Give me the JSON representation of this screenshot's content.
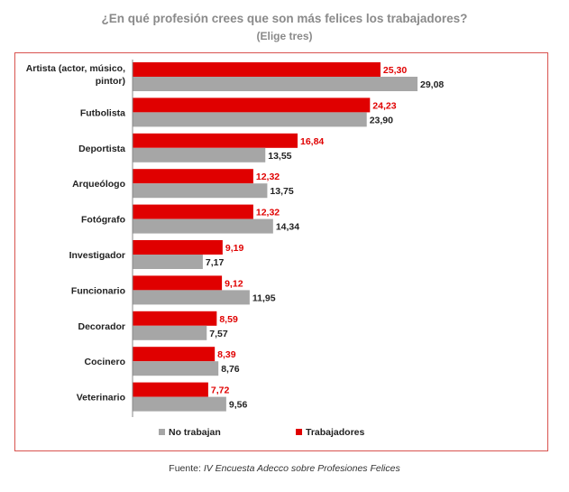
{
  "chart_data": {
    "type": "bar",
    "orientation": "horizontal",
    "title": "¿En qué profesión crees que son más felices los trabajadores?",
    "subtitle": "(Elige tres)",
    "categories": [
      "Artista (actor, músico, pintor)",
      "Futbolista",
      "Deportista",
      "Arqueólogo",
      "Fotógrafo",
      "Investigador",
      "Funcionario",
      "Decorador",
      "Cocinero",
      "Veterinario"
    ],
    "series": [
      {
        "name": "Trabajadores",
        "color": "#e00000",
        "values": [
          25.3,
          24.23,
          16.84,
          12.32,
          12.32,
          9.19,
          9.12,
          8.59,
          8.39,
          7.72
        ],
        "labels": [
          "25,30",
          "24,23",
          "16,84",
          "12,32",
          "12,32",
          "9,19",
          "9,12",
          "8,59",
          "8,39",
          "7,72"
        ]
      },
      {
        "name": "No trabajan",
        "color": "#a6a6a6",
        "values": [
          29.08,
          23.9,
          13.55,
          13.75,
          14.34,
          7.17,
          11.95,
          7.57,
          8.76,
          9.56
        ],
        "labels": [
          "29,08",
          "23,90",
          "13,55",
          "13,75",
          "14,34",
          "7,17",
          "11,95",
          "7,57",
          "8,76",
          "9,56"
        ]
      }
    ],
    "xlim": [
      0,
      30
    ],
    "legend": {
      "position": "bottom",
      "order": [
        "No trabajan",
        "Trabajadores"
      ]
    },
    "grid": false
  },
  "source": {
    "prefix": "Fuente: ",
    "text": "IV Encuesta Adecco sobre Profesiones Felices"
  }
}
